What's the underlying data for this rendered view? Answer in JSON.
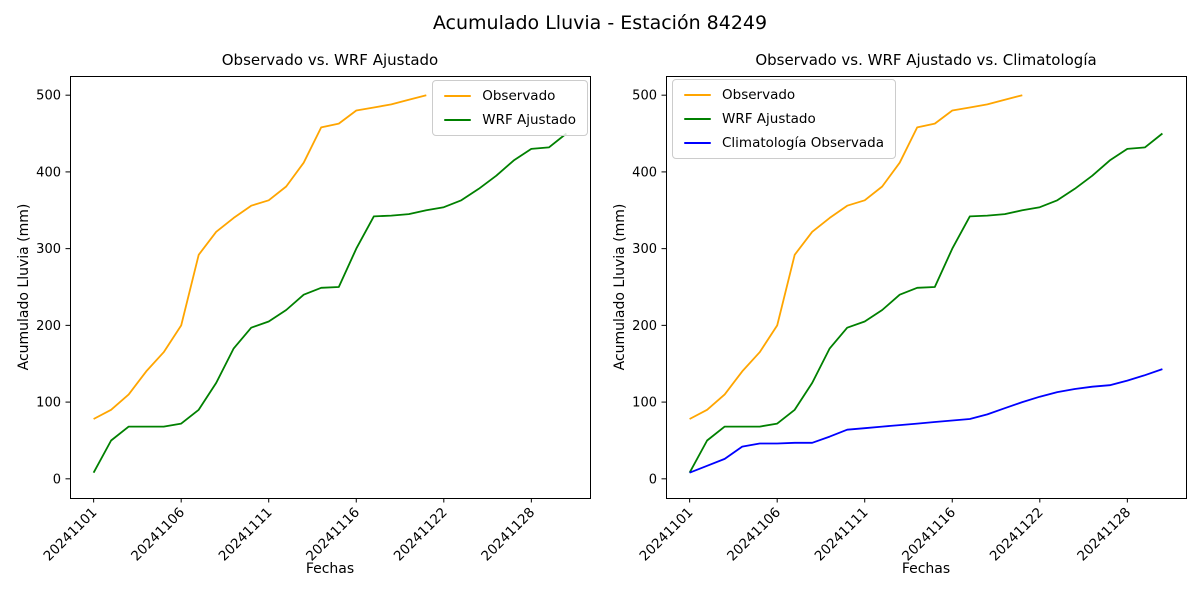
{
  "figure": {
    "title": "Acumulado Lluvia - Estación 84249",
    "background_color": "#ffffff"
  },
  "chart_data": [
    {
      "type": "line",
      "title": "Observado vs. WRF Ajustado",
      "xlabel": "Fechas",
      "ylabel": "Acumulado Lluvia (mm)",
      "ylim": [
        0,
        500
      ],
      "yticks": [
        0,
        100,
        200,
        300,
        400,
        500
      ],
      "x_tick_positions": [
        0,
        5,
        10,
        15,
        20,
        25
      ],
      "x_tick_labels": [
        "20241101",
        "20241106",
        "20241111",
        "20241116",
        "20241122",
        "20241128"
      ],
      "x_dates": [
        "20241101",
        "20241102",
        "20241103",
        "20241104",
        "20241105",
        "20241106",
        "20241107",
        "20241108",
        "20241109",
        "20241110",
        "20241111",
        "20241112",
        "20241113",
        "20241114",
        "20241115",
        "20241116",
        "20241118",
        "20241119",
        "20241120",
        "20241121",
        "20241122",
        "20241124",
        "20241125",
        "20241126",
        "20241127",
        "20241128",
        "20241129",
        "20241130"
      ],
      "grid": false,
      "legend_loc": "upper right",
      "series": [
        {
          "name": "Observado",
          "color": "#FFA500",
          "values": [
            78,
            90,
            110,
            140,
            165,
            200,
            292,
            322,
            340,
            356,
            363,
            381,
            412,
            458,
            463,
            480,
            484,
            488,
            494,
            500
          ]
        },
        {
          "name": "WRF Ajustado",
          "color": "#008000",
          "values": [
            8,
            50,
            68,
            68,
            68,
            72,
            90,
            125,
            170,
            197,
            205,
            220,
            240,
            249,
            250,
            300,
            342,
            343,
            345,
            350,
            354,
            363,
            378,
            395,
            415,
            430,
            432,
            450
          ]
        }
      ]
    },
    {
      "type": "line",
      "title": "Observado vs. WRF Ajustado vs. Climatología",
      "xlabel": "Fechas",
      "ylabel": "Acumulado Lluvia (mm)",
      "ylim": [
        0,
        500
      ],
      "yticks": [
        0,
        100,
        200,
        300,
        400,
        500
      ],
      "x_tick_positions": [
        0,
        5,
        10,
        15,
        20,
        25
      ],
      "x_tick_labels": [
        "20241101",
        "20241106",
        "20241111",
        "20241116",
        "20241122",
        "20241128"
      ],
      "x_dates": [
        "20241101",
        "20241102",
        "20241103",
        "20241104",
        "20241105",
        "20241106",
        "20241107",
        "20241108",
        "20241109",
        "20241110",
        "20241111",
        "20241112",
        "20241113",
        "20241114",
        "20241115",
        "20241116",
        "20241118",
        "20241119",
        "20241120",
        "20241121",
        "20241122",
        "20241124",
        "20241125",
        "20241126",
        "20241127",
        "20241128",
        "20241129",
        "20241130"
      ],
      "grid": false,
      "legend_loc": "upper left",
      "series": [
        {
          "name": "Observado",
          "color": "#FFA500",
          "values": [
            78,
            90,
            110,
            140,
            165,
            200,
            292,
            322,
            340,
            356,
            363,
            381,
            412,
            458,
            463,
            480,
            484,
            488,
            494,
            500
          ]
        },
        {
          "name": "WRF Ajustado",
          "color": "#008000",
          "values": [
            8,
            50,
            68,
            68,
            68,
            72,
            90,
            125,
            170,
            197,
            205,
            220,
            240,
            249,
            250,
            300,
            342,
            343,
            345,
            350,
            354,
            363,
            378,
            395,
            415,
            430,
            432,
            450
          ]
        },
        {
          "name": "Climatología Observada",
          "color": "#0000FF",
          "values": [
            8,
            17,
            26,
            42,
            46,
            46,
            47,
            47,
            55,
            64,
            66,
            68,
            70,
            72,
            74,
            76,
            78,
            84,
            92,
            100,
            107,
            113,
            117,
            120,
            122,
            128,
            135,
            143
          ]
        }
      ]
    }
  ]
}
